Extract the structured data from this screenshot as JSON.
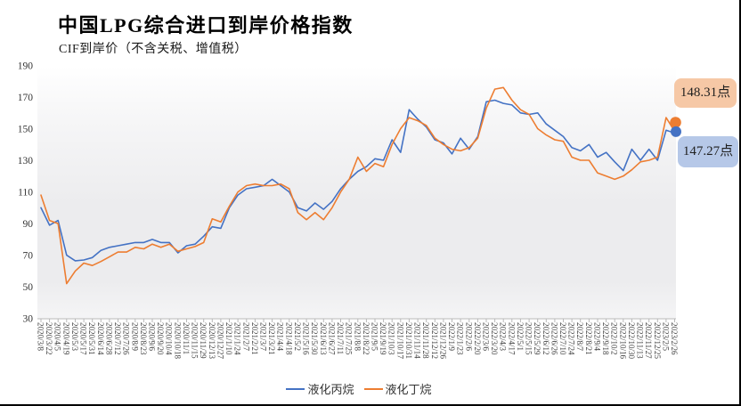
{
  "chart_data": {
    "type": "line",
    "title": "中国LPG综合进口到岸价格指数",
    "subtitle": "CIF到岸价（不含关税、增值税）",
    "xlabel": "",
    "ylabel": "",
    "ylim": [
      30,
      190
    ],
    "ytick_step": 20,
    "grid": false,
    "legend_position": "bottom",
    "categories": [
      "2020/3/8",
      "2020/3/22",
      "2020/4/5",
      "2020/4/19",
      "2020/5/3",
      "2020/5/17",
      "2020/5/31",
      "2020/6/14",
      "2020/6/28",
      "2020/7/12",
      "2020/7/26",
      "2020/8/9",
      "2020/8/23",
      "2020/9/6",
      "2020/9/20",
      "2020/10/4",
      "2020/10/18",
      "2020/11/1",
      "2020/11/15",
      "2020/11/29",
      "2020/12/13",
      "2020/12/27",
      "2021/1/10",
      "2021/1/24",
      "2021/2/7",
      "2021/2/21",
      "2021/3/7",
      "2021/3/21",
      "2021/4/4",
      "2021/4/18",
      "2021/5/2",
      "2021/5/16",
      "2021/5/30",
      "2021/6/13",
      "2021/6/27",
      "2021/7/11",
      "2021/7/25",
      "2021/8/8",
      "2021/8/22",
      "2021/9/5",
      "2021/9/19",
      "2021/10/3",
      "2021/10/17",
      "2021/10/31",
      "2021/11/14",
      "2021/11/28",
      "2021/12/12",
      "2021/12/26",
      "2022/1/9",
      "2022/1/23",
      "2022/2/6",
      "2022/2/20",
      "2022/3/6",
      "2022/3/20",
      "2022/4/3",
      "2022/4/17",
      "2022/5/1",
      "2022/5/15",
      "2022/5/29",
      "2022/6/12",
      "2022/6/26",
      "2022/7/10",
      "2022/7/24",
      "2022/8/7",
      "2022/8/21",
      "2022/9/4",
      "2022/9/18",
      "2022/10/2",
      "2022/10/16",
      "2022/10/30",
      "2022/11/13",
      "2022/11/27",
      "2022/12/25",
      "2023/2/5",
      "2023/2/26"
    ],
    "series": [
      {
        "name": "液化丙烷",
        "color": "#4472C4",
        "values": [
          100,
          89,
          92,
          70,
          66.5,
          67,
          68.5,
          73,
          75,
          76,
          77,
          78,
          78,
          80,
          78,
          78,
          71.5,
          76,
          77,
          82,
          88,
          87,
          100,
          108,
          112,
          113,
          114,
          118,
          114,
          110,
          100,
          98,
          103,
          99,
          104,
          112,
          118,
          123,
          126,
          131,
          130,
          143,
          135,
          162,
          156,
          151,
          143,
          141,
          134,
          144,
          137,
          145,
          167,
          168,
          166,
          165,
          160,
          159,
          160,
          153,
          149,
          145,
          138,
          136,
          140,
          132,
          135,
          129,
          123.5,
          137,
          130,
          137,
          130,
          149,
          147.27
        ]
      },
      {
        "name": "液化丁烷",
        "color": "#ED7D31",
        "values": [
          108,
          92,
          90,
          52,
          60,
          65,
          63.5,
          66,
          69,
          72,
          72,
          75,
          74,
          77,
          75,
          77,
          72.5,
          74,
          75.5,
          78,
          93,
          91,
          101,
          110,
          114,
          115,
          114,
          114,
          115,
          112,
          97,
          92.5,
          97,
          92.5,
          100,
          110,
          118,
          132,
          123,
          128,
          126,
          140,
          150,
          157,
          155,
          152,
          144,
          140,
          137,
          136,
          138,
          144,
          163,
          175,
          176,
          168,
          162,
          159,
          150,
          146,
          143,
          142,
          132,
          130,
          130,
          122,
          120,
          118,
          120,
          124,
          129,
          130,
          132,
          157,
          148.31
        ]
      }
    ],
    "end_labels": {
      "propane": "147.27点",
      "butane": "148.31点"
    },
    "callout_colors": {
      "propane_bg": "#B6C8E8",
      "butane_bg": "#F6C8A6"
    },
    "axis_color": "#b9b9b9"
  }
}
